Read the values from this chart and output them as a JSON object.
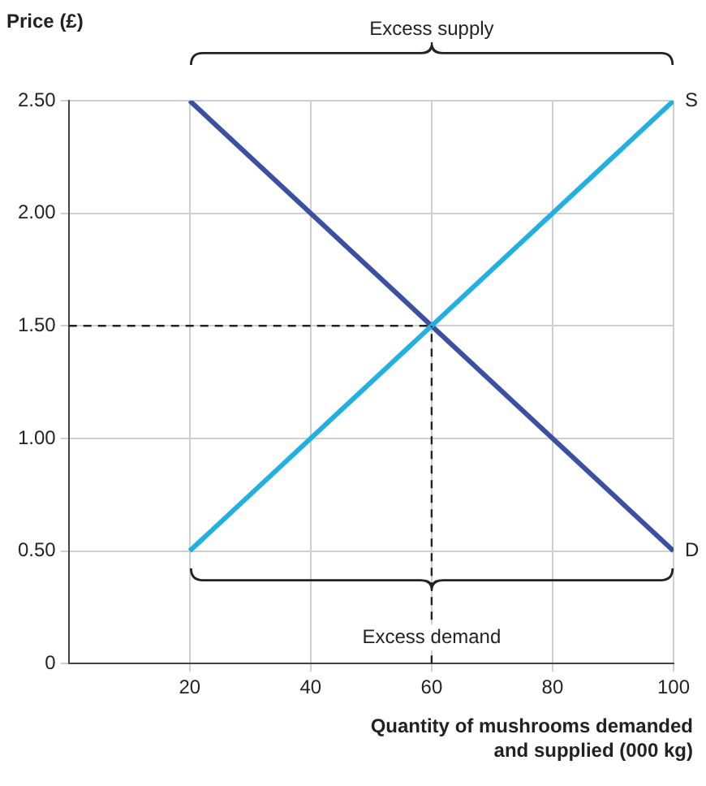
{
  "chart_data": {
    "type": "line",
    "xlabel": "Quantity of mushrooms demanded and supplied (000 kg)",
    "ylabel": "Price (£)",
    "x": [
      20,
      100
    ],
    "series": [
      {
        "name": "S",
        "color": "#22b0e0",
        "values": [
          0.5,
          2.5
        ]
      },
      {
        "name": "D",
        "color": "#3b4fa3",
        "values": [
          2.5,
          0.5
        ]
      }
    ],
    "xlim": [
      0,
      100
    ],
    "xticks": [
      20,
      40,
      60,
      80,
      100
    ],
    "ylim": [
      0,
      2.5
    ],
    "yticks": [
      0,
      {
        "value": 0.5,
        "label": "0.50"
      },
      {
        "value": 1,
        "label": "1.00"
      },
      {
        "value": 1.5,
        "label": "1.50"
      },
      {
        "value": 2,
        "label": "2.00"
      },
      {
        "value": 2.5,
        "label": "2.50"
      }
    ],
    "ref_lines": [
      {
        "axis": "y",
        "value": 1.5,
        "line_style": "dashed",
        "color": "#222222"
      },
      {
        "axis": "x",
        "value": 60,
        "line_style": "dashed",
        "color": "#222222"
      }
    ],
    "annotations": [
      "Excess supply",
      "Excess demand"
    ],
    "grid": true,
    "legend": false,
    "marker": "none",
    "line_style": "solid"
  }
}
